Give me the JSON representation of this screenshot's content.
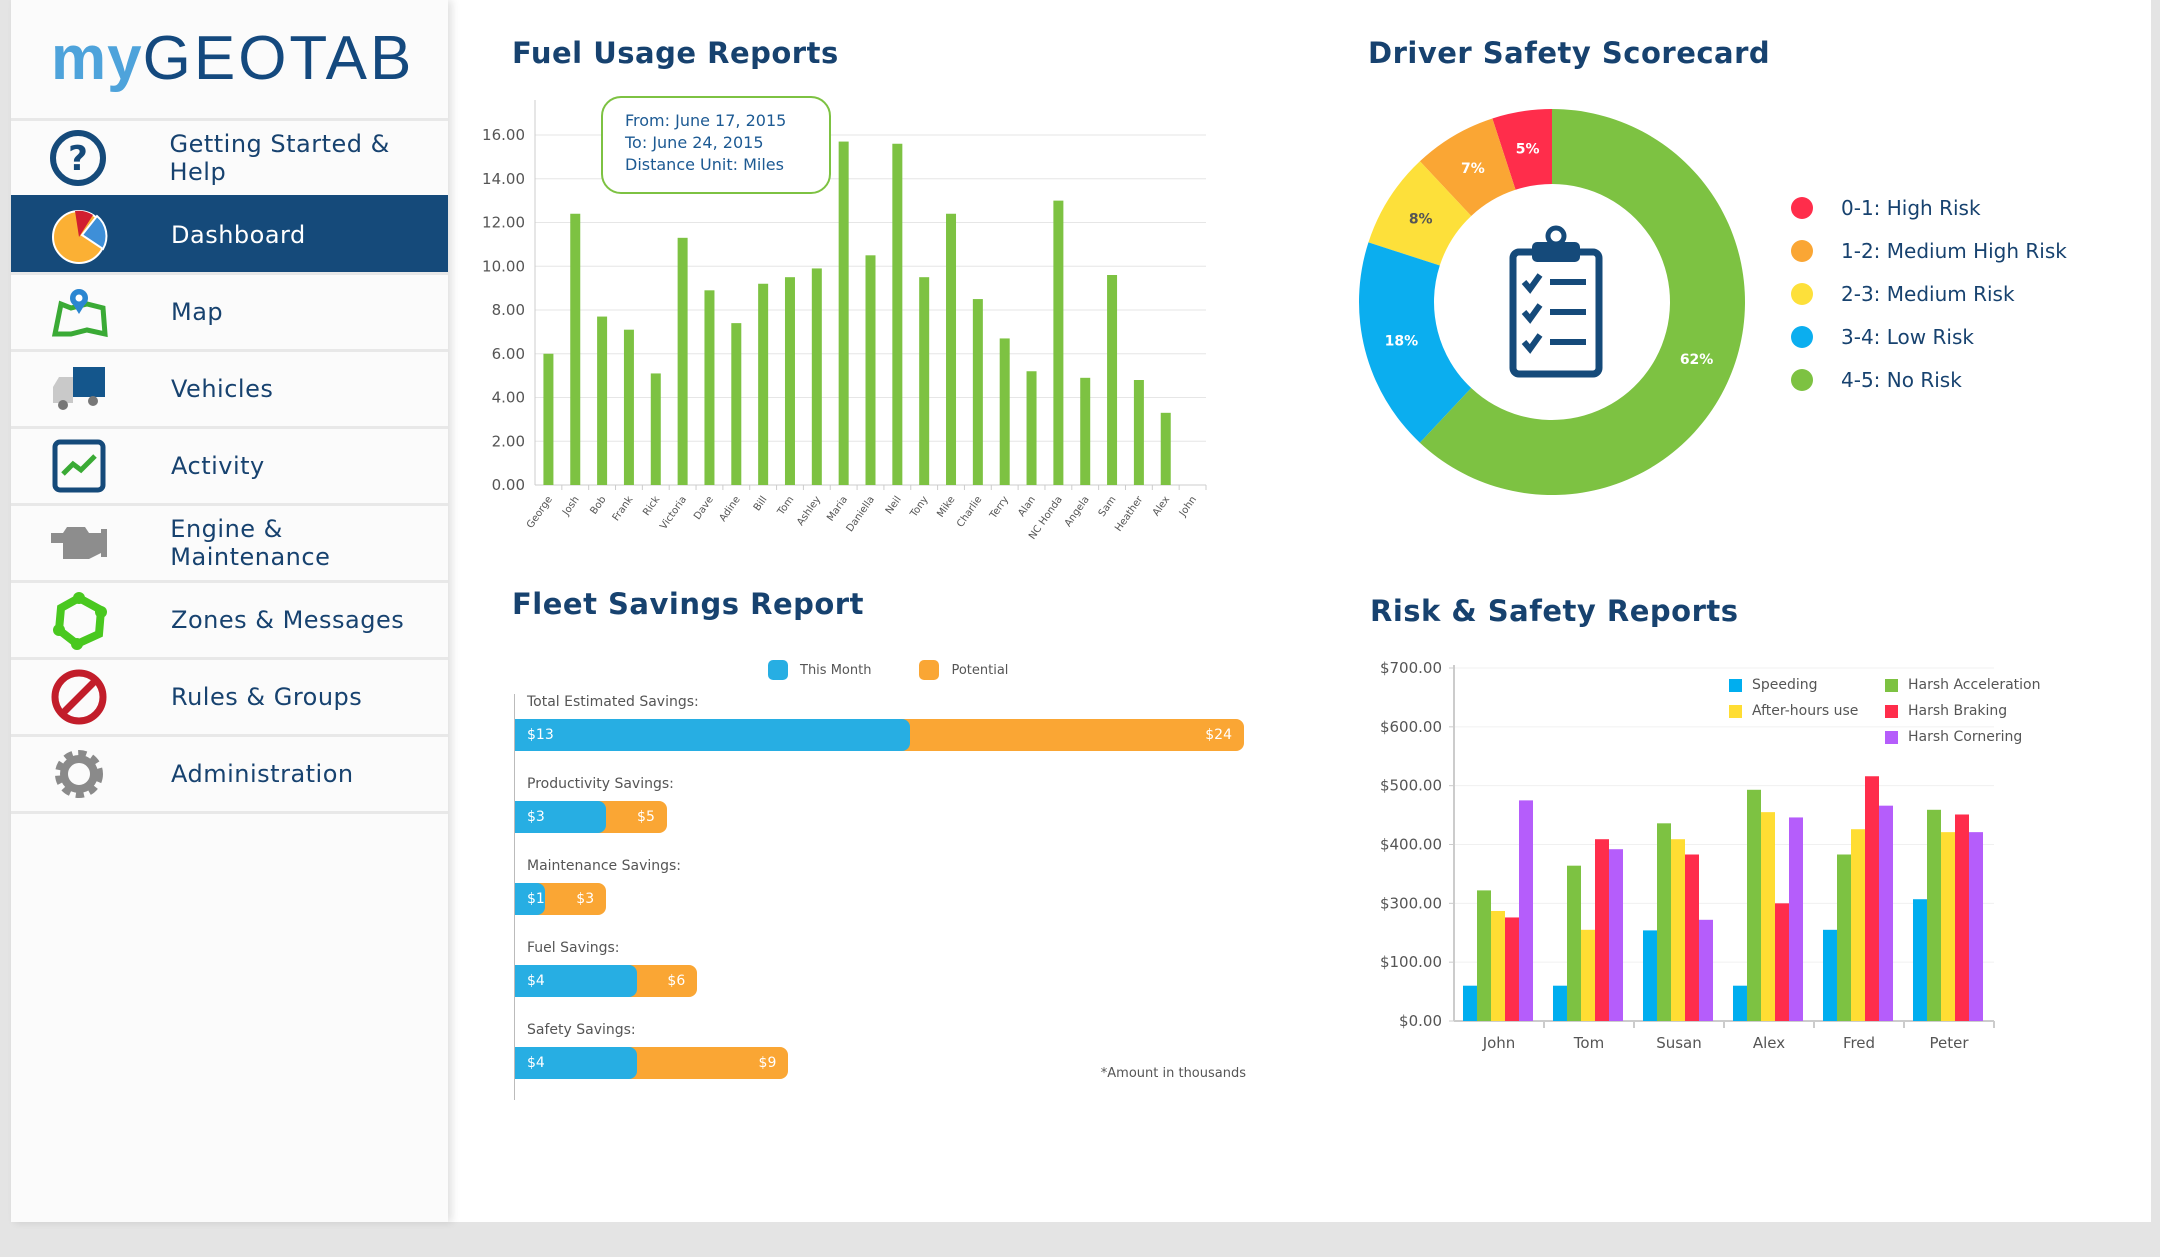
{
  "logo": {
    "my": "my",
    "geo": "GEOTAB"
  },
  "sidebar": {
    "items": [
      {
        "label": "Getting Started & Help",
        "icon": "help-icon"
      },
      {
        "label": "Dashboard",
        "icon": "pie-chart-icon",
        "active": true
      },
      {
        "label": "Map",
        "icon": "map-icon"
      },
      {
        "label": "Vehicles",
        "icon": "truck-icon"
      },
      {
        "label": "Activity",
        "icon": "activity-icon"
      },
      {
        "label": "Engine & Maintenance",
        "icon": "engine-icon"
      },
      {
        "label": "Zones & Messages",
        "icon": "zones-icon"
      },
      {
        "label": "Rules & Groups",
        "icon": "no-entry-icon"
      },
      {
        "label": "Administration",
        "icon": "gear-icon"
      }
    ]
  },
  "fuel": {
    "title": "Fuel Usage Reports",
    "tooltip": {
      "from": "From: June 17, 2015",
      "to": "To: June 24, 2015",
      "unit": "Distance Unit: Miles"
    }
  },
  "safety": {
    "title": "Driver Safety Scorecard"
  },
  "fleet": {
    "title": "Fleet Savings Report",
    "note": "*Amount in thousands"
  },
  "risk": {
    "title": "Risk & Safety Reports"
  },
  "chart_data": [
    {
      "id": "fuel",
      "type": "bar",
      "ylim": [
        0,
        17
      ],
      "yticks": [
        "0.00",
        "2.00",
        "4.00",
        "6.00",
        "8.00",
        "10.00",
        "12.00",
        "14.00",
        "16.00"
      ],
      "grid": true,
      "color": "#7dc242",
      "categories": [
        "George",
        "Josh",
        "Bob",
        "Frank",
        "Rick",
        "Victoria",
        "Dave",
        "Adine",
        "Bill",
        "Tom",
        "Ashley",
        "Maria",
        "Daniella",
        "Neil",
        "Tony",
        "Mike",
        "Charlie",
        "Terry",
        "Alan",
        "NC Honda",
        "Angela",
        "Sam",
        "Heather",
        "Alex",
        "John"
      ],
      "values": [
        6.0,
        12.4,
        7.7,
        7.1,
        5.1,
        11.3,
        8.9,
        7.4,
        9.2,
        9.5,
        9.9,
        15.7,
        10.5,
        15.6,
        9.5,
        12.4,
        8.5,
        6.7,
        5.2,
        13.0,
        4.9,
        9.6,
        4.8,
        3.3,
        0
      ]
    },
    {
      "id": "safety",
      "type": "pie",
      "donut": true,
      "legend": "right",
      "slices": [
        {
          "name": "0-1: High Risk",
          "value": 5,
          "label": "5%",
          "color": "#ff2d4b"
        },
        {
          "name": "1-2: Medium High Risk",
          "value": 7,
          "label": "7%",
          "color": "#faa634"
        },
        {
          "name": "2-3: Medium Risk",
          "value": 8,
          "label": "8%",
          "color": "#fde03a"
        },
        {
          "name": "3-4: Low Risk",
          "value": 18,
          "label": "18%",
          "color": "#0baeef"
        },
        {
          "name": "4-5: No Risk",
          "value": 62,
          "label": "62%",
          "color": "#7dc242"
        }
      ],
      "center_icon": "clipboard-checklist-icon"
    },
    {
      "id": "fleet",
      "type": "bar",
      "orientation": "horizontal",
      "stacked_overlay": true,
      "legend": "top",
      "series_names": [
        "This Month",
        "Potential"
      ],
      "colors": [
        "#27aee3",
        "#faa634"
      ],
      "rows": [
        {
          "label": "Total Estimated Savings:",
          "this_month": 13,
          "potential": 24,
          "this_label": "$13",
          "pot_label": "$24"
        },
        {
          "label": "Productivity Savings:",
          "this_month": 3,
          "potential": 5,
          "this_label": "$3",
          "pot_label": "$5"
        },
        {
          "label": "Maintenance Savings:",
          "this_month": 1,
          "potential": 3,
          "this_label": "$1",
          "pot_label": "$3"
        },
        {
          "label": "Fuel Savings:",
          "this_month": 4,
          "potential": 6,
          "this_label": "$4",
          "pot_label": "$6"
        },
        {
          "label": "Safety Savings:",
          "this_month": 4,
          "potential": 9,
          "this_label": "$4",
          "pot_label": "$9"
        }
      ]
    },
    {
      "id": "risk",
      "type": "bar",
      "legend": "top-right",
      "grid": true,
      "yticks": [
        {
          "label": "$0.00",
          "value": 0
        },
        {
          "label": "$100.00",
          "value": 100
        },
        {
          "label": "$300.00",
          "value": 300
        },
        {
          "label": "$400.00",
          "value": 400
        },
        {
          "label": "$500.00",
          "value": 500
        },
        {
          "label": "$600.00",
          "value": 600
        },
        {
          "label": "$700.00",
          "value": 700
        }
      ],
      "categories": [
        "John",
        "Tom",
        "Susan",
        "Alex",
        "Fred",
        "Peter"
      ],
      "series": [
        {
          "name": "Speeding",
          "color": "#00aeef",
          "values": [
            60,
            60,
            208,
            60,
            210,
            307
          ]
        },
        {
          "name": "Harsh Acceleration",
          "color": "#7dc242",
          "values": [
            322,
            364,
            436,
            493,
            383,
            459
          ]
        },
        {
          "name": "After-hours use",
          "color": "#ffdd33",
          "values": [
            274,
            210,
            409,
            455,
            426,
            421
          ]
        },
        {
          "name": "Harsh Braking",
          "color": "#ff2d4b",
          "values": [
            252,
            409,
            383,
            300,
            516,
            451
          ]
        },
        {
          "name": "Harsh Cornering",
          "color": "#b55dfb",
          "values": [
            475,
            392,
            244,
            446,
            466,
            421
          ]
        }
      ]
    }
  ]
}
